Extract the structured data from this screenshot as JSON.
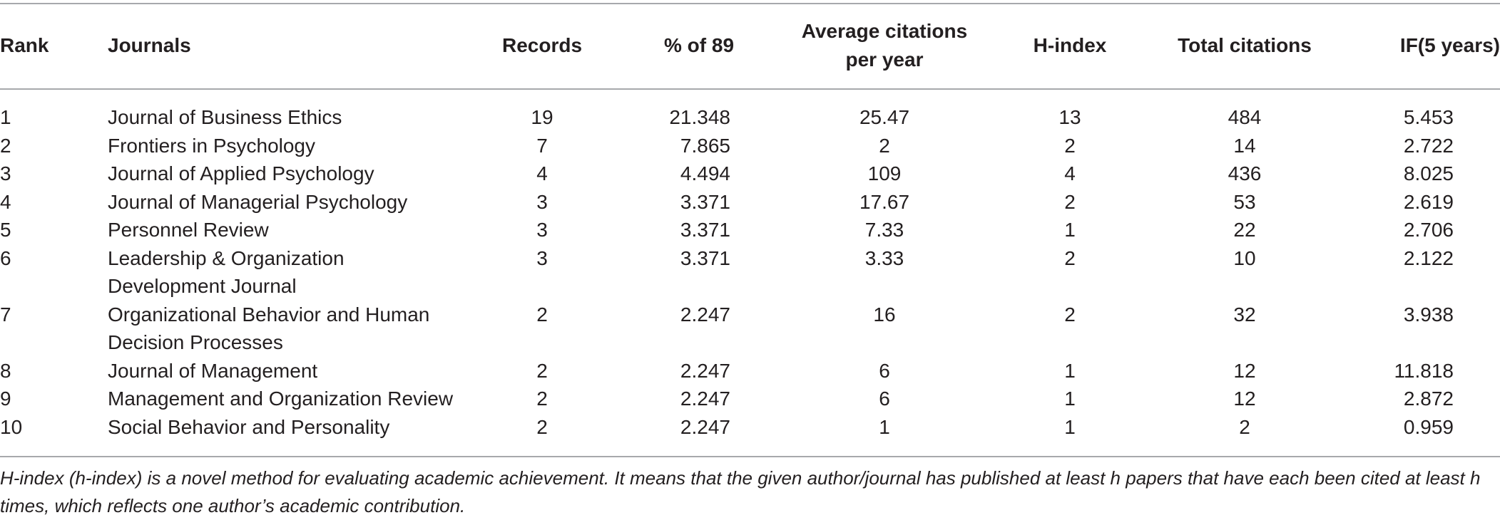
{
  "table": {
    "headers": {
      "rank": "Rank",
      "journals": "Journals",
      "records": "Records",
      "pct": "% of 89",
      "avg_line1": "Average citations",
      "avg_line2": "per year",
      "hindex": "H-index",
      "total": "Total citations",
      "if5": "IF(5 years)"
    },
    "rows": [
      {
        "rank": "1",
        "journal_lines": [
          "Journal of Business Ethics"
        ],
        "records": "19",
        "pct": "21.348",
        "avg": "25.47",
        "hindex": "13",
        "total": "484",
        "if5": "5.453"
      },
      {
        "rank": "2",
        "journal_lines": [
          "Frontiers in Psychology"
        ],
        "records": "7",
        "pct": "7.865",
        "avg": "2",
        "hindex": "2",
        "total": "14",
        "if5": "2.722"
      },
      {
        "rank": "3",
        "journal_lines": [
          "Journal of Applied Psychology"
        ],
        "records": "4",
        "pct": "4.494",
        "avg": "109",
        "hindex": "4",
        "total": "436",
        "if5": "8.025"
      },
      {
        "rank": "4",
        "journal_lines": [
          "Journal of Managerial Psychology"
        ],
        "records": "3",
        "pct": "3.371",
        "avg": "17.67",
        "hindex": "2",
        "total": "53",
        "if5": "2.619"
      },
      {
        "rank": "5",
        "journal_lines": [
          "Personnel Review"
        ],
        "records": "3",
        "pct": "3.371",
        "avg": "7.33",
        "hindex": "1",
        "total": "22",
        "if5": "2.706"
      },
      {
        "rank": "6",
        "journal_lines": [
          "Leadership & Organization",
          "Development Journal"
        ],
        "records": "3",
        "pct": "3.371",
        "avg": "3.33",
        "hindex": "2",
        "total": "10",
        "if5": "2.122"
      },
      {
        "rank": "7",
        "journal_lines": [
          "Organizational Behavior and Human",
          "Decision Processes"
        ],
        "records": "2",
        "pct": "2.247",
        "avg": "16",
        "hindex": "2",
        "total": "32",
        "if5": "3.938"
      },
      {
        "rank": "8",
        "journal_lines": [
          "Journal of Management"
        ],
        "records": "2",
        "pct": "2.247",
        "avg": "6",
        "hindex": "1",
        "total": "12",
        "if5": "11.818"
      },
      {
        "rank": "9",
        "journal_lines": [
          "Management and Organization Review"
        ],
        "records": "2",
        "pct": "2.247",
        "avg": "6",
        "hindex": "1",
        "total": "12",
        "if5": "2.872"
      },
      {
        "rank": "10",
        "journal_lines": [
          "Social Behavior and Personality"
        ],
        "records": "2",
        "pct": "2.247",
        "avg": "1",
        "hindex": "1",
        "total": "2",
        "if5": "0.959"
      }
    ]
  },
  "footnote": "H-index (h-index) is a novel method for evaluating academic achievement. It means that the given author/journal has published at least h papers that have each been cited at least h times, which reflects one author’s academic contribution."
}
